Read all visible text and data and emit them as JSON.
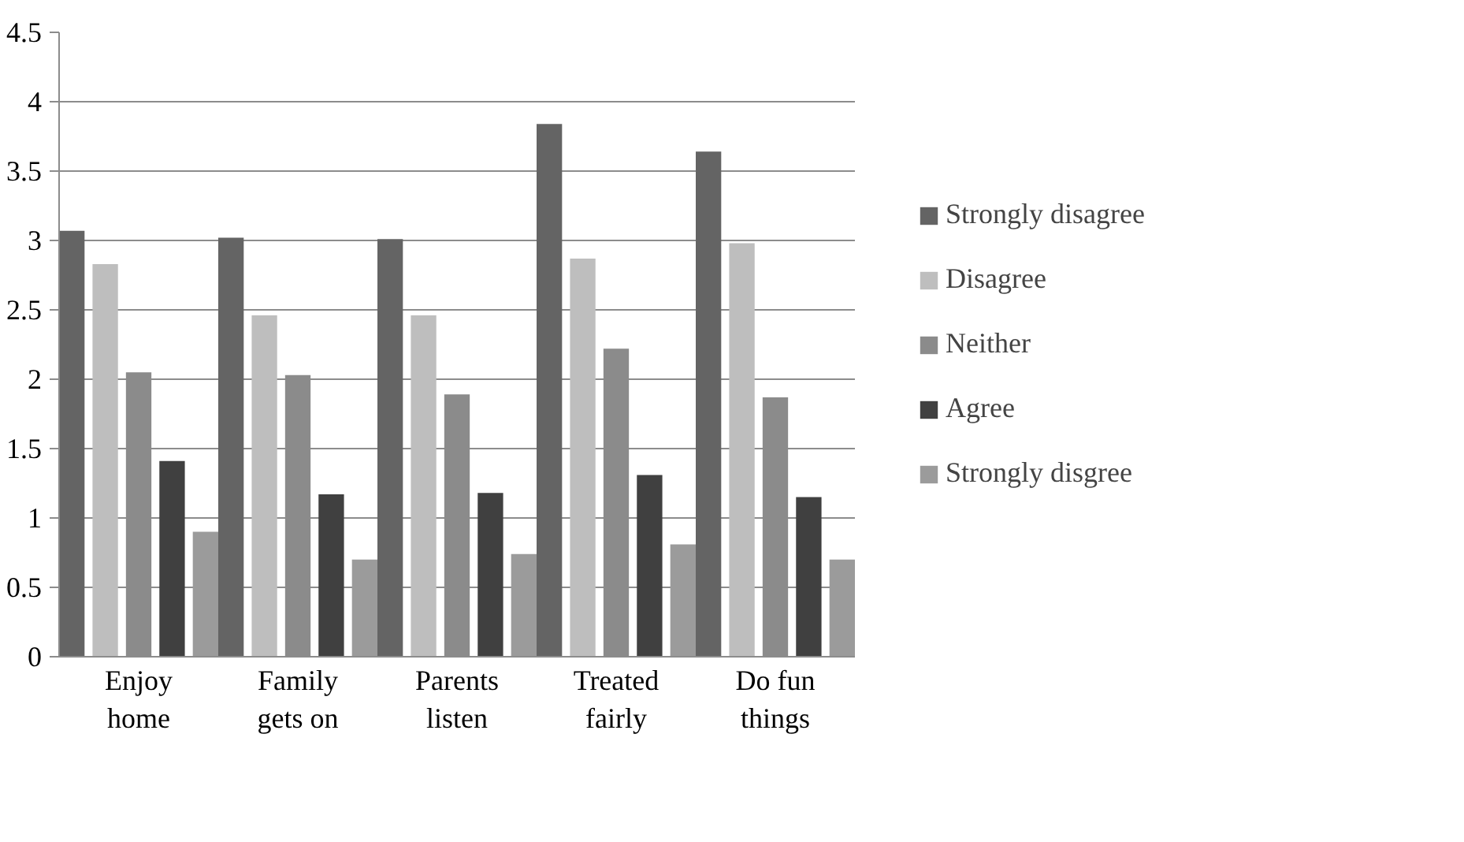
{
  "chart_data": {
    "type": "bar",
    "categories": [
      "Enjoy home",
      "Family gets on",
      "Parents listen",
      "Treated fairly",
      "Do fun things"
    ],
    "series": [
      {
        "name": "Strongly disagree",
        "color": "#646464",
        "values": [
          3.07,
          3.02,
          3.01,
          3.84,
          3.64
        ]
      },
      {
        "name": "Disagree",
        "color": "#bebebe",
        "values": [
          2.83,
          2.46,
          2.46,
          2.87,
          2.98
        ]
      },
      {
        "name": "Neither",
        "color": "#8b8b8b",
        "values": [
          2.05,
          2.03,
          1.89,
          2.22,
          1.87
        ]
      },
      {
        "name": "Agree",
        "color": "#404040",
        "values": [
          1.41,
          1.17,
          1.18,
          1.31,
          1.15
        ]
      },
      {
        "name": "Strongly disgree",
        "color": "#9b9b9b",
        "values": [
          0.9,
          0.7,
          0.74,
          0.81,
          0.7
        ]
      }
    ],
    "ylim": [
      0,
      4.5
    ],
    "yticks": [
      0,
      0.5,
      1,
      1.5,
      2,
      2.5,
      3,
      3.5,
      4,
      4.5
    ],
    "grid": "y",
    "legend": "right"
  }
}
